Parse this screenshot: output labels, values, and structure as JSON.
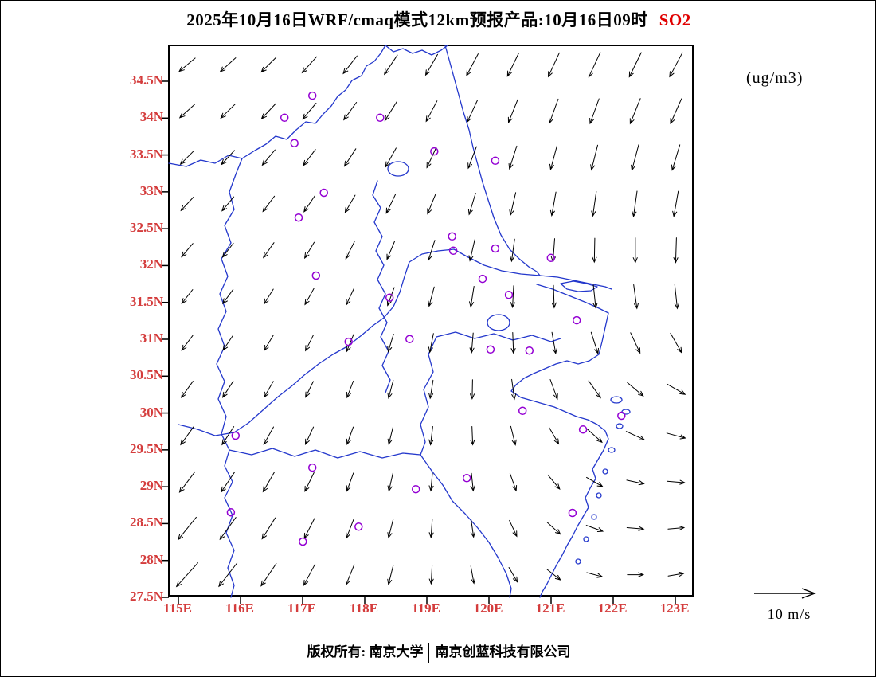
{
  "title": {
    "main": "2025年10月16日WRF/cmaq模式12km预报产品:10月16日09时",
    "species": "SO2"
  },
  "units_label": "(ug/m3)",
  "legend": {
    "wind_scale_label": "10 m/s",
    "wind_scale_speed": 10,
    "wind_scale_units": "m/s"
  },
  "footer": {
    "copyright": "版权所有: 南京大学",
    "company": "南京创蓝科技有限公司"
  },
  "colors": {
    "axis_label": "#d43c3c",
    "map_line": "#2438cc",
    "marker": "#9400d3",
    "species": "#e00000",
    "arrow": "#000000"
  },
  "chart_data": {
    "type": "vector_map",
    "title": "2025年10月16日WRF/cmaq模式12km预报产品:10月16日09时 SO2",
    "units": "(ug/m3)",
    "lon_range": [
      114.85,
      123.31
    ],
    "lat_range": [
      27.5,
      34.99
    ],
    "x_ticks": [
      "115E",
      "116E",
      "117E",
      "118E",
      "119E",
      "120E",
      "121E",
      "122E",
      "123E"
    ],
    "y_ticks": [
      "34.5N",
      "34N",
      "33.5N",
      "33N",
      "32.5N",
      "32N",
      "31.5N",
      "31N",
      "30.5N",
      "30N",
      "29.5N",
      "29N",
      "28.5N",
      "28N",
      "27.5N"
    ],
    "grid": false,
    "wind_scale": {
      "speed": 10,
      "units": "m/s"
    },
    "wind_field": {
      "cols": 13,
      "rows": 12,
      "fx_start": 0.035,
      "fx_step": 0.0775,
      "fy_start": 0.035,
      "fy_step": 0.084,
      "angles": [
        [
          140,
          138,
          135,
          132,
          128,
          124,
          120,
          118,
          116,
          115,
          115,
          116,
          118
        ],
        [
          138,
          136,
          133,
          130,
          126,
          122,
          118,
          115,
          112,
          110,
          110,
          112,
          114
        ],
        [
          135,
          133,
          130,
          127,
          123,
          119,
          115,
          111,
          108,
          105,
          104,
          105,
          107
        ],
        [
          133,
          130,
          127,
          124,
          120,
          116,
          112,
          107,
          103,
          100,
          98,
          98,
          100
        ],
        [
          130,
          128,
          125,
          121,
          117,
          113,
          108,
          103,
          98,
          94,
          91,
          90,
          92
        ],
        [
          128,
          126,
          122,
          119,
          115,
          110,
          105,
          99,
          93,
          88,
          84,
          82,
          84
        ],
        [
          127,
          124,
          121,
          117,
          112,
          107,
          101,
          95,
          88,
          80,
          72,
          65,
          60
        ],
        [
          126,
          123,
          120,
          116,
          111,
          105,
          99,
          91,
          82,
          70,
          55,
          40,
          30
        ],
        [
          126,
          123,
          119,
          115,
          110,
          104,
          97,
          88,
          76,
          60,
          42,
          25,
          15
        ],
        [
          127,
          124,
          120,
          116,
          110,
          103,
          95,
          84,
          70,
          50,
          30,
          12,
          5
        ],
        [
          129,
          126,
          122,
          117,
          111,
          104,
          94,
          82,
          65,
          42,
          20,
          5,
          -5
        ],
        [
          132,
          128,
          124,
          118,
          112,
          104,
          93,
          80,
          60,
          38,
          15,
          0,
          -10
        ]
      ],
      "lengths": [
        [
          26,
          26,
          26,
          27,
          28,
          29,
          30,
          31,
          32,
          33,
          34,
          34,
          34
        ],
        [
          25,
          25,
          26,
          26,
          27,
          28,
          29,
          30,
          31,
          32,
          33,
          34,
          34
        ],
        [
          24,
          24,
          25,
          25,
          26,
          27,
          28,
          29,
          30,
          31,
          32,
          33,
          33
        ],
        [
          23,
          23,
          24,
          24,
          25,
          26,
          27,
          28,
          29,
          30,
          31,
          32,
          32
        ],
        [
          22,
          22,
          23,
          23,
          24,
          25,
          26,
          27,
          28,
          29,
          30,
          31,
          31
        ],
        [
          22,
          22,
          22,
          23,
          23,
          24,
          25,
          26,
          27,
          28,
          29,
          30,
          30
        ],
        [
          23,
          22,
          22,
          22,
          23,
          23,
          24,
          25,
          26,
          27,
          28,
          28,
          28
        ],
        [
          25,
          24,
          23,
          22,
          22,
          23,
          23,
          24,
          25,
          26,
          26,
          26,
          26
        ],
        [
          28,
          27,
          25,
          24,
          23,
          22,
          23,
          23,
          24,
          24,
          25,
          25,
          24
        ],
        [
          32,
          30,
          28,
          26,
          24,
          23,
          22,
          22,
          23,
          23,
          23,
          22,
          22
        ],
        [
          36,
          34,
          31,
          28,
          26,
          24,
          23,
          22,
          22,
          22,
          22,
          21,
          20
        ],
        [
          40,
          37,
          34,
          30,
          27,
          25,
          23,
          22,
          21,
          21,
          20,
          20,
          20
        ]
      ]
    },
    "markers": {
      "shape": "circle",
      "meaning": "SO2 concentration contour circles",
      "points_frac": [
        [
          0.273,
          0.091
        ],
        [
          0.22,
          0.131
        ],
        [
          0.402,
          0.131
        ],
        [
          0.239,
          0.177
        ],
        [
          0.505,
          0.192
        ],
        [
          0.621,
          0.209
        ],
        [
          0.295,
          0.267
        ],
        [
          0.247,
          0.312
        ],
        [
          0.539,
          0.346
        ],
        [
          0.541,
          0.372
        ],
        [
          0.621,
          0.368
        ],
        [
          0.727,
          0.385
        ],
        [
          0.28,
          0.417
        ],
        [
          0.597,
          0.423
        ],
        [
          0.42,
          0.457
        ],
        [
          0.647,
          0.452
        ],
        [
          0.776,
          0.498
        ],
        [
          0.342,
          0.537
        ],
        [
          0.458,
          0.532
        ],
        [
          0.612,
          0.551
        ],
        [
          0.686,
          0.553
        ],
        [
          0.673,
          0.662
        ],
        [
          0.788,
          0.696
        ],
        [
          0.861,
          0.671
        ],
        [
          0.127,
          0.707
        ],
        [
          0.273,
          0.765
        ],
        [
          0.567,
          0.784
        ],
        [
          0.47,
          0.804
        ],
        [
          0.768,
          0.847
        ],
        [
          0.118,
          0.846
        ],
        [
          0.361,
          0.872
        ],
        [
          0.255,
          0.899
        ]
      ]
    }
  }
}
